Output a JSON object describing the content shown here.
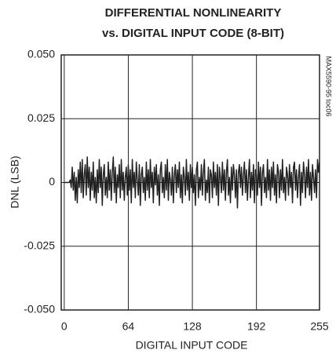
{
  "chart_data": {
    "type": "line",
    "title": "DIFFERENTIAL NONLINEARITY",
    "subtitle": "vs. DIGITAL INPUT CODE (8-BIT)",
    "x_label": "DIGITAL INPUT CODE",
    "y_label": "DNL (LSB)",
    "annotation": "MAX5590-95 toc06",
    "xlim": [
      -3,
      255
    ],
    "ylim": [
      -0.05,
      0.05
    ],
    "xticks": [
      0,
      64,
      128,
      192,
      255
    ],
    "yticks": [
      {
        "value": -0.05,
        "label": "-0.050"
      },
      {
        "value": -0.025,
        "label": "-0.025"
      },
      0,
      {
        "value": 0.025,
        "label": "0.025"
      },
      {
        "value": 0.05,
        "label": "0.050"
      }
    ],
    "grid": true,
    "x": [
      0,
      1,
      2,
      3,
      4,
      5,
      6,
      7,
      8,
      9,
      10,
      11,
      12,
      13,
      14,
      15,
      16,
      17,
      18,
      19,
      20,
      21,
      22,
      23,
      24,
      25,
      26,
      27,
      28,
      29,
      30,
      31,
      32,
      33,
      34,
      35,
      36,
      37,
      38,
      39,
      40,
      41,
      42,
      43,
      44,
      45,
      46,
      47,
      48,
      49,
      50,
      51,
      52,
      53,
      54,
      55,
      56,
      57,
      58,
      59,
      60,
      61,
      62,
      63,
      64,
      65,
      66,
      67,
      68,
      69,
      70,
      71,
      72,
      73,
      74,
      75,
      76,
      77,
      78,
      79,
      80,
      81,
      82,
      83,
      84,
      85,
      86,
      87,
      88,
      89,
      90,
      91,
      92,
      93,
      94,
      95,
      96,
      97,
      98,
      99,
      100,
      101,
      102,
      103,
      104,
      105,
      106,
      107,
      108,
      109,
      110,
      111,
      112,
      113,
      114,
      115,
      116,
      117,
      118,
      119,
      120,
      121,
      122,
      123,
      124,
      125,
      126,
      127,
      128,
      129,
      130,
      131,
      132,
      133,
      134,
      135,
      136,
      137,
      138,
      139,
      140,
      141,
      142,
      143,
      144,
      145,
      146,
      147,
      148,
      149,
      150,
      151,
      152,
      153,
      154,
      155,
      156,
      157,
      158,
      159,
      160,
      161,
      162,
      163,
      164,
      165,
      166,
      167,
      168,
      169,
      170,
      171,
      172,
      173,
      174,
      175,
      176,
      177,
      178,
      179,
      180,
      181,
      182,
      183,
      184,
      185,
      186,
      187,
      188,
      189,
      190,
      191,
      192,
      193,
      194,
      195,
      196,
      197,
      198,
      199,
      200,
      201,
      202,
      203,
      204,
      205,
      206,
      207,
      208,
      209,
      210,
      211,
      212,
      213,
      214,
      215,
      216,
      217,
      218,
      219,
      220,
      221,
      222,
      223,
      224,
      225,
      226,
      227,
      228,
      229,
      230,
      231,
      232,
      233,
      234,
      235,
      236,
      237,
      238,
      239,
      240,
      241,
      242,
      243,
      244,
      245,
      246,
      247,
      248,
      249,
      250,
      251,
      252,
      253,
      254,
      255
    ],
    "series": [
      {
        "name": "DNL",
        "color": "#222222",
        "values": [
          0,
          0,
          0,
          0,
          0,
          0,
          0.001,
          -0.002,
          0.006,
          -0.003,
          0.004,
          -0.007,
          0.002,
          -0.008,
          0.005,
          -0.002,
          0.008,
          -0.004,
          0.009,
          -0.006,
          0.003,
          0.007,
          -0.005,
          0.01,
          -0.002,
          0.006,
          -0.007,
          0.004,
          -0.003,
          0.008,
          -0.006,
          0.002,
          -0.008,
          0.005,
          -0.004,
          0.009,
          -0.002,
          0.006,
          -0.009,
          0.003,
          0.007,
          -0.005,
          0.002,
          -0.006,
          0.008,
          -0.003,
          0.005,
          -0.007,
          0.004,
          0.01,
          -0.004,
          0.006,
          -0.008,
          0.003,
          -0.002,
          0.007,
          -0.006,
          0.009,
          -0.003,
          0.004,
          -0.007,
          0.002,
          0.006,
          -0.005,
          0.007,
          -0.003,
          0.005,
          -0.008,
          0.009,
          -0.002,
          0.004,
          -0.006,
          0.008,
          0.001,
          -0.005,
          0.007,
          -0.009,
          0.003,
          0.006,
          -0.004,
          0.002,
          -0.007,
          0.008,
          -0.003,
          0.005,
          -0.006,
          0.009,
          -0.002,
          0.004,
          -0.008,
          0.006,
          -0.001,
          0.007,
          -0.005,
          0.003,
          -0.009,
          0.005,
          0.008,
          -0.004,
          0.002,
          -0.006,
          0.007,
          -0.003,
          0.009,
          -0.007,
          0.004,
          0.001,
          -0.005,
          0.006,
          -0.008,
          0.003,
          0.007,
          -0.004,
          0.005,
          -0.002,
          0.008,
          -0.006,
          0.003,
          -0.008,
          0.006,
          0.002,
          -0.005,
          0.009,
          -0.003,
          0.004,
          -0.007,
          0.007,
          -0.002,
          0.006,
          -0.004,
          0.003,
          -0.009,
          0.005,
          0.008,
          -0.006,
          0.002,
          -0.003,
          0.007,
          -0.005,
          0.004,
          0.009,
          -0.007,
          0.001,
          -0.004,
          0.006,
          -0.008,
          0.005,
          0.003,
          -0.006,
          0.008,
          -0.002,
          0.004,
          -0.005,
          0.007,
          -0.009,
          0.006,
          0.002,
          -0.004,
          0.008,
          -0.003,
          0.005,
          -0.007,
          0.004,
          0.009,
          -0.005,
          0.002,
          -0.008,
          0.006,
          -0.003,
          0.007,
          0.003,
          -0.006,
          0.005,
          -0.01,
          0.004,
          0.007,
          -0.002,
          0.006,
          -0.005,
          0.003,
          0.008,
          -0.004,
          0.005,
          -0.007,
          0.002,
          0.009,
          -0.006,
          0.004,
          -0.003,
          0.007,
          -0.008,
          0.005,
          0.003,
          -0.005,
          0.008,
          -0.002,
          0.006,
          -0.009,
          0.004,
          0.007,
          -0.004,
          0.002,
          -0.006,
          0.009,
          -0.003,
          0.005,
          -0.007,
          0.006,
          -0.002,
          0.008,
          -0.005,
          0.003,
          -0.008,
          0.007,
          0.004,
          -0.006,
          0.005,
          -0.003,
          0.009,
          -0.004,
          0.002,
          -0.007,
          0.006,
          0.003,
          -0.005,
          0.007,
          -0.002,
          0.004,
          -0.008,
          0.006,
          0.008,
          -0.003,
          0.005,
          -0.006,
          0.002,
          0.007,
          -0.009,
          0.004,
          -0.004,
          0.008,
          0.003,
          -0.006,
          0.006,
          -0.002,
          0.009,
          -0.005,
          0.004,
          -0.007,
          0.007,
          0.002,
          -0.004,
          0.005,
          -0.006,
          0.009,
          0.004,
          0.008
        ]
      }
    ]
  }
}
